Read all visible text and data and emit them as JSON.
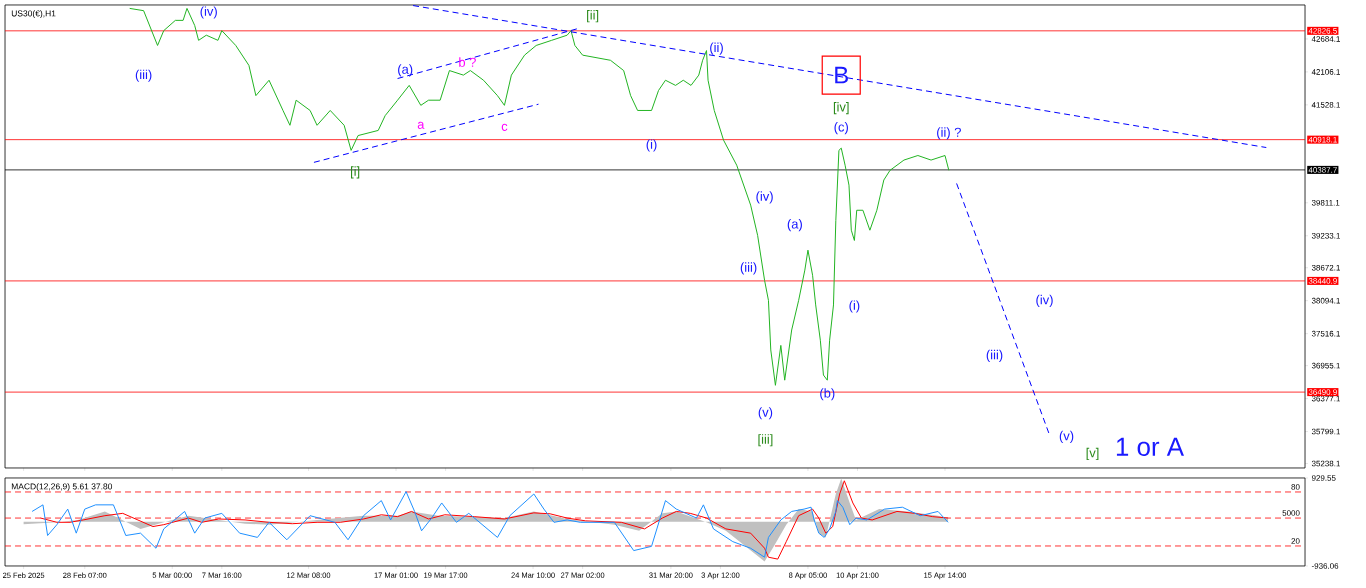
{
  "chart_data": [
    {
      "type": "line",
      "title": "US30(€),H1",
      "tick_labels": "y",
      "x": [
        "2025-03-02T17:00",
        "2025-03-03T11:00",
        "2025-03-04T05:00",
        "2025-03-04T13:00",
        "2025-03-05T04:00",
        "2025-03-05T14:00",
        "2025-03-05T19:00",
        "2025-03-06T05:00",
        "2025-03-06T10:00",
        "2025-03-06T20:00",
        "2025-03-07T11:00",
        "2025-03-07T16:00",
        "2025-03-08T10:00",
        "2025-03-09T03:00",
        "2025-03-09T12:00",
        "2025-03-10T05:00",
        "2025-03-10T23:00",
        "2025-03-11T08:00",
        "2025-03-11T16:00",
        "2025-03-12T10:00",
        "2025-03-12T19:00",
        "2025-03-13T12:00",
        "2025-03-14T06:00",
        "2025-03-14T15:00",
        "2025-03-15T00:00",
        "2025-03-16T02:00",
        "2025-03-16T11:00",
        "2025-03-17T03:00",
        "2025-03-17T18:00",
        "2025-03-18T09:00",
        "2025-03-18T19:00",
        "2025-03-19T10:00",
        "2025-03-19T22:00",
        "2025-03-20T16:00",
        "2025-03-21T01:00",
        "2025-03-21T18:00",
        "2025-03-22T12:00",
        "2025-03-22T21:00",
        "2025-03-23T06:00",
        "2025-03-23T23:00",
        "2025-03-24T14:00",
        "2025-03-25T10:00",
        "2025-03-26T06:00",
        "2025-03-26T11:00",
        "2025-03-26T16:00",
        "2025-03-27T02:00",
        "2025-03-28T14:00",
        "2025-03-29T07:00",
        "2025-03-29T16:00",
        "2025-03-30T01:00",
        "2025-03-30T19:00",
        "2025-03-31T04:00",
        "2025-03-31T13:00",
        "2025-04-01T02:00",
        "2025-04-01T12:00",
        "2025-04-01T22:00",
        "2025-04-02T08:00",
        "2025-04-02T13:00",
        "2025-04-02T18:00",
        "2025-04-02T20:00",
        "2025-04-03T04:00",
        "2025-04-03T16:00",
        "2025-04-04T09:00",
        "2025-04-04T18:00",
        "2025-04-05T03:00",
        "2025-04-05T12:00",
        "2025-04-05T21:00",
        "2025-04-06T02:00",
        "2025-04-06T05:00",
        "2025-04-06T11:00",
        "2025-04-06T18:00",
        "2025-04-06T23:00",
        "2025-04-07T08:00",
        "2025-04-07T17:00",
        "2025-04-08T01:00",
        "2025-04-08T05:00",
        "2025-04-08T11:00",
        "2025-04-08T15:00",
        "2025-04-08T21:00",
        "2025-04-09T01:00",
        "2025-04-09T06:00",
        "2025-04-09T09:00",
        "2025-04-09T14:00",
        "2025-04-09T17:00",
        "2025-04-09T21:00",
        "2025-04-10T00:00",
        "2025-04-10T05:00",
        "2025-04-10T10:00",
        "2025-04-10T13:00",
        "2025-04-10T17:00",
        "2025-04-10T20:00",
        "2025-04-11T04:00",
        "2025-04-11T13:00",
        "2025-04-11T22:00",
        "2025-04-12T07:00",
        "2025-04-12T15:00",
        "2025-04-13T09:00",
        "2025-04-14T03:00",
        "2025-04-14T20:00",
        "2025-04-15T14:00",
        "2025-04-15T19:00"
      ],
      "series": [
        {
          "color": "#22b422",
          "values": [
            43220,
            43180,
            42570,
            42830,
            43010,
            43010,
            43220,
            42920,
            42660,
            42750,
            42660,
            42830,
            42570,
            42220,
            41690,
            41960,
            41430,
            41170,
            41610,
            41430,
            41170,
            41430,
            41170,
            40730,
            40990,
            41080,
            41340,
            41610,
            41870,
            41520,
            41610,
            41610,
            42130,
            42050,
            42130,
            41960,
            41690,
            41520,
            42050,
            42400,
            42570,
            42660,
            42750,
            42830,
            42570,
            42400,
            42310,
            42130,
            41690,
            41430,
            41430,
            41780,
            41960,
            41870,
            41960,
            41870,
            42050,
            42310,
            42480,
            41960,
            41430,
            40910,
            40470,
            40120,
            39770,
            39240,
            38450,
            38100,
            37230,
            36610,
            37310,
            36700,
            37580,
            38100,
            38630,
            38980,
            38540,
            38020,
            37400,
            36790,
            36700,
            37400,
            38020,
            39500,
            40730,
            40770,
            40470,
            40120,
            39330,
            39150,
            39680,
            39680,
            39330,
            39680,
            40210,
            40380,
            40560,
            40640,
            40560,
            40640,
            40380
          ]
        },
        {
          "type": "line",
          "color": "#0000ff",
          "line_style": "dashed",
          "x": [
            "2025-03-17T23:00",
            "2025-05-02T21:00"
          ],
          "values": [
            43270,
            40780
          ]
        },
        {
          "type": "line",
          "color": "#0000ff",
          "line_style": "dashed",
          "x": [
            "2025-03-17T03:00",
            "2025-03-26T21:00"
          ],
          "values": [
            41990,
            42870
          ]
        },
        {
          "type": "line",
          "color": "#0000ff",
          "line_style": "dashed",
          "x": [
            "2025-03-12T15:00",
            "2025-03-24T17:00"
          ],
          "values": [
            40520,
            41540
          ]
        },
        {
          "type": "line",
          "color": "#0000ff",
          "line_style": "dashed",
          "x": [
            "2025-04-16T05:00",
            "2025-04-21T05:00"
          ],
          "values": [
            40150,
            35740
          ]
        }
      ],
      "xlim": [
        "2025-02-24T00:00",
        "2025-05-04T23:00"
      ],
      "ylim": [
        35160,
        43280
      ],
      "xticks": [
        "2025-02-25T00:00",
        "2025-02-28T07:00",
        "2025-03-05T00:00",
        "2025-03-07T16:00",
        "2025-03-12T08:00",
        "2025-03-17T01:00",
        "2025-03-19T17:00",
        "2025-03-24T10:00",
        "2025-03-27T02:00",
        "2025-03-31T20:00",
        "2025-04-03T12:00",
        "2025-04-08T05:00",
        "2025-04-10T21:00",
        "2025-04-15T14:00"
      ],
      "yticks": [
        42684.1,
        42106.1,
        41528.1,
        39811.1,
        39233.1,
        38672.1,
        38094.1,
        37516.1,
        36955.1,
        36377.1,
        35799.1,
        35238.1
      ],
      "ref_lines": [
        {
          "axis": "y",
          "value": 42826.5,
          "label": "42826.5",
          "color": "#ff0000",
          "line_style": "solid"
        },
        {
          "axis": "y",
          "value": 40918.1,
          "label": "40918.1",
          "color": "#ff0000",
          "line_style": "solid"
        },
        {
          "axis": "y",
          "value": 38440.9,
          "label": "38440.9",
          "color": "#ff0000",
          "line_style": "solid"
        },
        {
          "axis": "y",
          "value": 36490.9,
          "label": "36490.9",
          "color": "#ff0000",
          "line_style": "solid"
        },
        {
          "axis": "y",
          "value": 40387.7,
          "label": "40387.7",
          "color": "#000000",
          "line_style": "solid"
        }
      ],
      "annotations": [
        "(iv)",
        "(iii)",
        "(a)",
        "a",
        "b ?",
        "c",
        "[i]",
        "[ii]",
        "(ii)",
        "(i)",
        "B",
        "[iv]",
        "(c)",
        "(ii) ?",
        "(iv)",
        "(a)",
        "(iii)",
        "(v)",
        "[iii]",
        "(b)",
        "(i)",
        "(iv)",
        "(iii)",
        "(v)",
        "[v]",
        "1 or A"
      ]
    },
    {
      "type": "line",
      "title": "MACD(12,26,9) 5.61 37.80",
      "series": [
        {
          "type": "area",
          "color": "#c0c0c0",
          "x": [
            "2025-02-25T00:00",
            "2025-02-26T19:00",
            "2025-02-27T22:00",
            "2025-03-01T09:00",
            "2025-03-03T07:00",
            "2025-03-04T13:00",
            "2025-03-05T21:00",
            "2025-03-07T12:00",
            "2025-03-08T22:00",
            "2025-03-10T05:00",
            "2025-03-12T19:00",
            "2025-03-15T07:00",
            "2025-03-17T03:00",
            "2025-03-17T21:00",
            "2025-03-19T08:00",
            "2025-03-22T21:00",
            "2025-03-24T11:00",
            "2025-03-26T06:00",
            "2025-03-28T19:00",
            "2025-03-30T03:00",
            "2025-03-31T09:00",
            "2025-04-01T03:00",
            "2025-04-02T18:00",
            "2025-04-03T19:00",
            "2025-04-05T21:00",
            "2025-04-06T09:00",
            "2025-04-07T01:00",
            "2025-04-07T17:00",
            "2025-04-08T11:00",
            "2025-04-08T19:00",
            "2025-04-09T04:00",
            "2025-04-09T17:00",
            "2025-04-10T00:00",
            "2025-04-10T11:00",
            "2025-04-10T19:00",
            "2025-04-12T01:00",
            "2025-04-13T14:00",
            "2025-04-15T05:00",
            "2025-04-15T18:00"
          ],
          "values": [
            -50,
            -10,
            40,
            220,
            -150,
            -10,
            130,
            40,
            -40,
            -60,
            40,
            130,
            130,
            220,
            130,
            80,
            220,
            60,
            -60,
            -190,
            180,
            220,
            -10,
            -190,
            -840,
            -520,
            -60,
            270,
            220,
            -240,
            -330,
            590,
            920,
            400,
            40,
            270,
            220,
            130,
            80
          ]
        },
        {
          "type": "line",
          "color": "#ff0000",
          "x": [
            "2025-02-25T22:00",
            "2025-02-26T19:00",
            "2025-02-27T12:00",
            "2025-02-28T05:00",
            "2025-03-01T09:00",
            "2025-03-02T08:00",
            "2025-03-03T23:00",
            "2025-03-04T13:00",
            "2025-03-05T21:00",
            "2025-03-06T14:00",
            "2025-03-07T12:00",
            "2025-03-08T22:00",
            "2025-03-10T05:00",
            "2025-03-11T11:00",
            "2025-03-12T19:00",
            "2025-03-14T01:00",
            "2025-03-15T07:00",
            "2025-03-16T06:00",
            "2025-03-17T03:00",
            "2025-03-17T21:00",
            "2025-03-18T19:00",
            "2025-03-19T16:00",
            "2025-03-21T06:00",
            "2025-03-22T21:00",
            "2025-03-24T11:00",
            "2025-03-25T08:00",
            "2025-03-26T06:00",
            "2025-03-27T06:00",
            "2025-03-29T04:00",
            "2025-03-30T10:00",
            "2025-03-31T09:00",
            "2025-04-01T03:00",
            "2025-04-01T21:00",
            "2025-04-02T18:00",
            "2025-04-03T19:00",
            "2025-04-05T03:00",
            "2025-04-05T21:00",
            "2025-04-06T02:00",
            "2025-04-06T14:00",
            "2025-04-07T01:00",
            "2025-04-07T17:00",
            "2025-04-08T11:00",
            "2025-04-08T19:00",
            "2025-04-09T04:00",
            "2025-04-09T13:00",
            "2025-04-09T22:00",
            "2025-04-10T04:00",
            "2025-04-10T15:00",
            "2025-04-11T02:00",
            "2025-04-11T16:00",
            "2025-04-13T00:00",
            "2025-04-13T23:00",
            "2025-04-14T22:00",
            "2025-04-15T18:00"
          ],
          "values": [
            80,
            -10,
            -10,
            40,
            130,
            180,
            -100,
            -60,
            80,
            -10,
            60,
            40,
            -10,
            -40,
            -10,
            -10,
            60,
            150,
            110,
            220,
            60,
            150,
            110,
            60,
            190,
            170,
            80,
            20,
            -10,
            -150,
            80,
            220,
            180,
            80,
            -150,
            -240,
            -560,
            -750,
            -790,
            -420,
            130,
            270,
            80,
            -240,
            -100,
            590,
            870,
            400,
            80,
            40,
            220,
            180,
            110,
            80
          ]
        },
        {
          "type": "line",
          "color": "#1e90ff",
          "x": [
            "2025-02-25T11:00",
            "2025-02-26T01:00",
            "2025-02-26T07:00",
            "2025-02-26T19:00",
            "2025-02-27T09:00",
            "2025-02-27T20:00",
            "2025-02-28T07:00",
            "2025-02-28T21:00",
            "2025-03-01T20:00",
            "2025-03-02T12:00",
            "2025-03-03T07:00",
            "2025-03-04T03:00",
            "2025-03-04T13:00",
            "2025-03-05T16:00",
            "2025-03-06T05:00",
            "2025-03-06T18:00",
            "2025-03-07T16:00",
            "2025-03-08T15:00",
            "2025-03-09T14:00",
            "2025-03-10T05:00",
            "2025-03-11T04:00",
            "2025-03-12T10:00",
            "2025-03-13T18:00",
            "2025-03-14T11:00",
            "2025-03-15T07:00",
            "2025-03-16T06:00",
            "2025-03-16T18:00",
            "2025-03-17T14:00",
            "2025-03-18T01:00",
            "2025-03-18T10:00",
            "2025-03-18T23:00",
            "2025-03-19T12:00",
            "2025-03-20T07:00",
            "2025-03-20T23:00",
            "2025-03-22T12:00",
            "2025-03-23T04:00",
            "2025-03-24T11:00",
            "2025-03-25T00:00",
            "2025-03-25T13:00",
            "2025-03-26T06:00",
            "2025-03-26T23:00",
            "2025-03-28T19:00",
            "2025-03-29T20:00",
            "2025-03-30T19:00",
            "2025-03-31T13:00",
            "2025-04-01T03:00",
            "2025-04-02T05:00",
            "2025-04-02T14:00",
            "2025-04-03T03:00",
            "2025-04-04T04:00",
            "2025-04-05T03:00",
            "2025-04-05T21:00",
            "2025-04-06T02:00",
            "2025-04-06T18:00",
            "2025-04-07T08:00",
            "2025-04-08T00:00",
            "2025-04-08T09:00",
            "2025-04-08T13:00",
            "2025-04-08T19:00",
            "2025-04-09T02:00",
            "2025-04-09T09:00",
            "2025-04-09T17:00",
            "2025-04-09T19:00",
            "2025-04-10T02:00",
            "2025-04-10T11:00",
            "2025-04-10T19:00",
            "2025-04-11T09:00",
            "2025-04-12T08:00",
            "2025-04-13T07:00",
            "2025-04-14T06:00",
            "2025-04-15T05:00",
            "2025-04-15T18:00"
          ],
          "values": [
            220,
            360,
            -290,
            -60,
            270,
            -240,
            270,
            360,
            360,
            -290,
            -240,
            -560,
            -150,
            220,
            -240,
            80,
            180,
            -240,
            -330,
            -10,
            -380,
            130,
            -10,
            -380,
            130,
            450,
            40,
            640,
            220,
            -190,
            80,
            400,
            -10,
            180,
            -330,
            130,
            590,
            270,
            -10,
            40,
            -10,
            -10,
            -610,
            -520,
            450,
            270,
            80,
            360,
            -150,
            -420,
            -560,
            -750,
            -330,
            40,
            220,
            270,
            310,
            40,
            -240,
            -330,
            -150,
            220,
            450,
            310,
            -60,
            80,
            40,
            270,
            310,
            130,
            220,
            -10
          ]
        }
      ],
      "xlim": [
        "2025-02-24T00:00",
        "2025-05-04T23:00"
      ],
      "ylim": [
        -936.06,
        929.55
      ],
      "xticks": [
        {
          "value": "2025-02-25T00:00",
          "label": "25 Feb 2025"
        },
        {
          "value": "2025-02-28T07:00",
          "label": "28 Feb 07:00"
        },
        {
          "value": "2025-03-05T00:00",
          "label": "5 Mar 00:00"
        },
        {
          "value": "2025-03-07T16:00",
          "label": "7 Mar 16:00"
        },
        {
          "value": "2025-03-12T08:00",
          "label": "12 Mar 08:00"
        },
        {
          "value": "2025-03-17T01:00",
          "label": "17 Mar 01:00"
        },
        {
          "value": "2025-03-19T17:00",
          "label": "19 Mar 17:00"
        },
        {
          "value": "2025-03-24T10:00",
          "label": "24 Mar 10:00"
        },
        {
          "value": "2025-03-27T02:00",
          "label": "27 Mar 02:00"
        },
        {
          "value": "2025-03-31T20:00",
          "label": "31 Mar 20:00"
        },
        {
          "value": "2025-04-03T12:00",
          "label": "3 Apr 12:00"
        },
        {
          "value": "2025-04-08T05:00",
          "label": "8 Apr 05:00"
        },
        {
          "value": "2025-04-10T21:00",
          "label": "10 Apr 21:00"
        },
        {
          "value": "2025-04-15T14:00",
          "label": "15 Apr 14:00"
        }
      ],
      "yticks": [
        929.55,
        -936.06
      ],
      "ref_lines": [
        {
          "axis": "y",
          "value": 633,
          "color": "#ff0000",
          "line_style": "dashed"
        },
        {
          "axis": "y",
          "value": 80,
          "color": "#ff0000",
          "line_style": "dashed"
        },
        {
          "axis": "y",
          "value": -512,
          "color": "#ff0000",
          "line_style": "dashed"
        }
      ],
      "annotations": [
        "80",
        "5000",
        "20"
      ]
    }
  ]
}
